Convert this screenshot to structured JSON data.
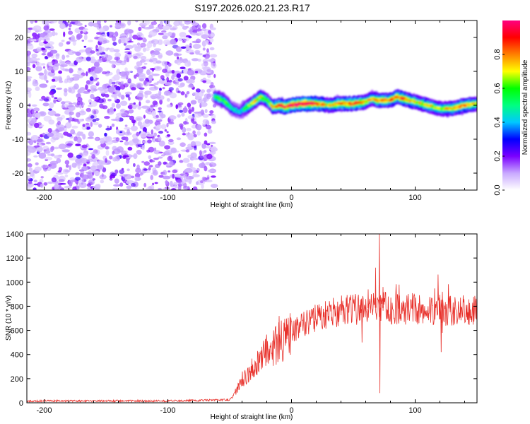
{
  "title": "S197.2026.020.21.23.R17",
  "chart_data": [
    {
      "type": "heatmap",
      "xlabel": "Height of straight line (km)",
      "ylabel": "Frequency (Hz)",
      "xlim": [
        -214,
        150
      ],
      "ylim": [
        -25,
        25
      ],
      "xticks": [
        -200,
        -100,
        0,
        100
      ],
      "xtick_labels": [
        "-200",
        "-100",
        "0",
        "100"
      ],
      "yticks": [
        -20,
        -10,
        0,
        10,
        20
      ],
      "ytick_labels": [
        "-20",
        "-10",
        "0",
        "10",
        "20"
      ],
      "colorbar": {
        "label": "Normalized spectral amplitude",
        "range": [
          0,
          1
        ],
        "ticks": [
          0.0,
          0.2,
          0.4,
          0.6,
          0.8
        ],
        "tick_labels": [
          "0.0",
          "0.2",
          "0.4",
          "0.6",
          "0.8"
        ],
        "colors": [
          "#ffffff",
          "#c8a8ff",
          "#7a00ff",
          "#0000ff",
          "#00c8ff",
          "#00ff80",
          "#00ff00",
          "#ffff00",
          "#ff8000",
          "#ff0000",
          "#ff0080"
        ]
      },
      "noise_region_x": [
        -214,
        -62
      ],
      "noise_amplitude_max": 0.25,
      "signal_ridge": {
        "x": [
          -62,
          -55,
          -48,
          -42,
          -36,
          -30,
          -25,
          -20,
          -15,
          -10,
          -5,
          0,
          10,
          20,
          30,
          40,
          50,
          60,
          65,
          70,
          80,
          85,
          90,
          100,
          110,
          120,
          130,
          140,
          150
        ],
        "freq": [
          2.5,
          1.5,
          -1.0,
          -2.0,
          -0.5,
          1.0,
          2.5,
          1.5,
          -0.5,
          0.0,
          -0.5,
          0.0,
          0.5,
          0.5,
          0.0,
          0.5,
          0.5,
          1.0,
          2.0,
          1.5,
          1.5,
          2.5,
          2.0,
          1.0,
          0.0,
          -1.0,
          -1.0,
          0.0,
          0.5
        ],
        "peak_amplitude": [
          0.55,
          0.6,
          0.5,
          0.4,
          0.6,
          0.7,
          0.7,
          0.6,
          0.7,
          0.85,
          0.9,
          0.95,
          1.0,
          0.9,
          0.7,
          0.8,
          0.85,
          0.75,
          0.7,
          0.8,
          0.8,
          0.85,
          0.85,
          0.7,
          0.75,
          0.65,
          0.75,
          0.8,
          0.7
        ]
      }
    },
    {
      "type": "line",
      "xlabel": "Height of straight line (km)",
      "ylabel": "SNR (10 * v/v)",
      "xlim": [
        -214,
        150
      ],
      "ylim": [
        0,
        1400
      ],
      "xticks": [
        -200,
        -100,
        0,
        100
      ],
      "xtick_labels": [
        "-200",
        "-100",
        "0",
        "100"
      ],
      "yticks": [
        0,
        200,
        400,
        600,
        800,
        1000,
        1200,
        1400
      ],
      "ytick_labels": [
        "0",
        "200",
        "400",
        "600",
        "800",
        "1000",
        "1200",
        "1400"
      ],
      "series": [
        {
          "name": "SNR",
          "color": "#e8302a",
          "trend_x": [
            -214,
            -100,
            -50,
            -48,
            -40,
            -30,
            -20,
            -10,
            0,
            10,
            20,
            30,
            40,
            50,
            60,
            70,
            80,
            100,
            120,
            150
          ],
          "trend_y": [
            15,
            15,
            25,
            50,
            180,
            320,
            420,
            500,
            580,
            650,
            700,
            740,
            760,
            770,
            780,
            790,
            780,
            780,
            770,
            760
          ],
          "spikes": [
            {
              "x": 71,
              "y": 1400
            },
            {
              "x": 71.5,
              "y": 80
            },
            {
              "x": 68,
              "y": 1120
            },
            {
              "x": 74,
              "y": 960
            },
            {
              "x": 62,
              "y": 940
            },
            {
              "x": 57,
              "y": 500
            },
            {
              "x": 122,
              "y": 920
            },
            {
              "x": 121,
              "y": 420
            },
            {
              "x": -10,
              "y": 720
            },
            {
              "x": 87,
              "y": 980
            },
            {
              "x": 122,
              "y": 580
            }
          ]
        }
      ]
    }
  ]
}
